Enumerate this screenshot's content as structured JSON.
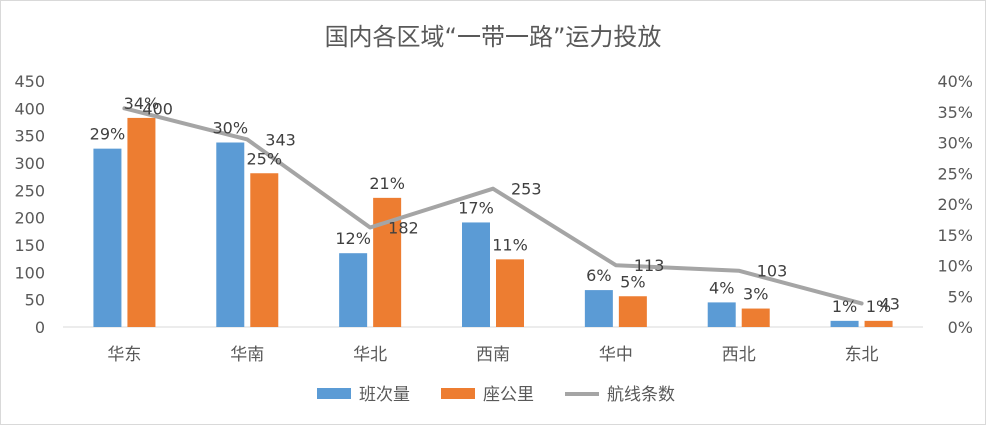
{
  "chart_data": {
    "type": "bar",
    "title": "国内各区域“一带一路”运力投放",
    "categories": [
      "华东",
      "华南",
      "华北",
      "西南",
      "华中",
      "西北",
      "东北"
    ],
    "series": [
      {
        "name": "班次量",
        "kind": "bar",
        "axis": "right",
        "values": [
          0.29,
          0.3,
          0.12,
          0.17,
          0.06,
          0.04,
          0.01
        ],
        "labels": [
          "29%",
          "30%",
          "12%",
          "17%",
          "6%",
          "4%",
          "1%"
        ],
        "color": "#5b9bd5"
      },
      {
        "name": "座公里",
        "kind": "bar",
        "axis": "right",
        "values": [
          0.34,
          0.25,
          0.21,
          0.11,
          0.05,
          0.03,
          0.01
        ],
        "labels": [
          "34%",
          "25%",
          "21%",
          "11%",
          "5%",
          "3%",
          "1%"
        ],
        "color": "#ed7d31"
      },
      {
        "name": "航线条数",
        "kind": "line",
        "axis": "left",
        "values": [
          400,
          343,
          182,
          253,
          113,
          103,
          43
        ],
        "labels": [
          "400",
          "343",
          "182",
          "253",
          "113",
          "103",
          "43"
        ],
        "color": "#a5a5a5"
      }
    ],
    "y_left": {
      "range": [
        0,
        450
      ],
      "ticks": [
        "0",
        "50",
        "100",
        "150",
        "200",
        "250",
        "300",
        "350",
        "400",
        "450"
      ]
    },
    "y_right": {
      "range": [
        0,
        0.4
      ],
      "ticks": [
        "0%",
        "5%",
        "10%",
        "15%",
        "20%",
        "25%",
        "30%",
        "35%",
        "40%"
      ]
    },
    "grid": false,
    "legend": "bottom"
  }
}
